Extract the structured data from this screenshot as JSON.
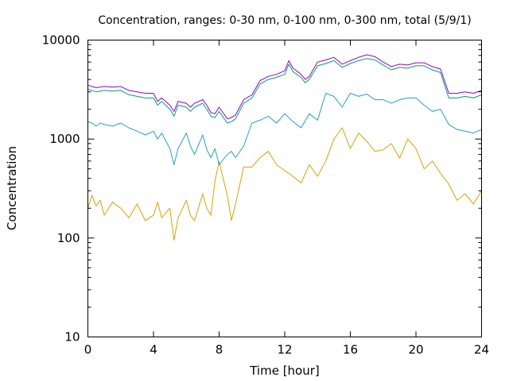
{
  "chart_data": {
    "type": "line",
    "title": "Concentration, ranges: 0-30 nm, 0-100 nm, 0-300 nm, total (5/9/1)",
    "xlabel": "Time [hour]",
    "ylabel": "Concentration",
    "xlim": [
      0,
      24
    ],
    "ylim": [
      10,
      10000
    ],
    "yscale": "log",
    "grid": false,
    "xticks": [
      0,
      4,
      8,
      12,
      16,
      20,
      24
    ],
    "yticks": [
      10,
      100,
      1000,
      10000
    ],
    "xtick_labels": [
      "0",
      "4",
      "8",
      "12",
      "16",
      "20",
      "24"
    ],
    "ytick_labels": [
      "10",
      "100",
      "1000",
      "10000"
    ],
    "series": [
      {
        "color": "#dca000",
        "x": [
          0,
          0.25,
          0.5,
          0.75,
          1,
          1.5,
          2,
          2.5,
          3,
          3.5,
          4,
          4.25,
          4.5,
          5,
          5.25,
          5.5,
          6,
          6.25,
          6.5,
          7,
          7.25,
          7.5,
          7.75,
          8,
          8.5,
          8.75,
          9,
          9.5,
          10,
          10.5,
          11,
          11.5,
          12,
          12.5,
          13,
          13.5,
          14,
          14.5,
          15,
          15.5,
          16,
          16.5,
          17,
          17.5,
          18,
          18.5,
          19,
          19.5,
          20,
          20.5,
          21,
          21.5,
          22,
          22.5,
          23,
          23.5,
          24
        ],
        "y": [
          200,
          270,
          210,
          240,
          170,
          230,
          200,
          160,
          220,
          150,
          170,
          230,
          160,
          200,
          95,
          160,
          240,
          170,
          150,
          280,
          200,
          170,
          380,
          590,
          270,
          150,
          220,
          520,
          520,
          650,
          750,
          550,
          480,
          420,
          360,
          550,
          420,
          600,
          1000,
          1300,
          800,
          1150,
          950,
          750,
          780,
          900,
          640,
          1000,
          800,
          500,
          600,
          450,
          350,
          240,
          280,
          220,
          300
        ]
      },
      {
        "color": "#20a0c8",
        "x": [
          0,
          0.25,
          0.5,
          0.75,
          1,
          1.5,
          2,
          2.5,
          3,
          3.5,
          4,
          4.25,
          4.5,
          5,
          5.25,
          5.5,
          6,
          6.25,
          6.5,
          7,
          7.25,
          7.5,
          7.75,
          8,
          8.5,
          8.75,
          9,
          9.5,
          10,
          10.5,
          11,
          11.5,
          12,
          12.5,
          13,
          13.5,
          14,
          14.5,
          15,
          15.5,
          16,
          16.5,
          17,
          17.5,
          18,
          18.5,
          19,
          19.5,
          20,
          20.5,
          21,
          21.5,
          22,
          22.5,
          23,
          23.5,
          24
        ],
        "y": [
          1500,
          1450,
          1350,
          1450,
          1400,
          1350,
          1450,
          1300,
          1200,
          1100,
          1200,
          1000,
          1150,
          800,
          550,
          800,
          1150,
          850,
          700,
          1100,
          780,
          650,
          800,
          550,
          700,
          750,
          650,
          850,
          1450,
          1550,
          1700,
          1450,
          1800,
          1500,
          1300,
          1800,
          1550,
          2900,
          2700,
          2100,
          2900,
          2700,
          2850,
          2500,
          2500,
          2300,
          2500,
          2600,
          2600,
          2200,
          1900,
          2000,
          1400,
          1250,
          1200,
          1150,
          1250
        ]
      },
      {
        "color": "#009e73",
        "x": [
          0,
          0.5,
          1,
          1.5,
          2,
          2.5,
          3,
          3.5,
          4,
          4.25,
          4.5,
          5,
          5.25,
          5.5,
          6,
          6.25,
          6.5,
          7,
          7.25,
          7.5,
          7.75,
          8,
          8.5,
          8.75,
          9,
          9.5,
          10,
          10.5,
          11,
          11.5,
          12,
          12.25,
          12.5,
          13,
          13.25,
          13.5,
          14,
          14.5,
          15,
          15.5,
          16,
          16.5,
          17,
          17.5,
          18,
          18.5,
          19,
          19.5,
          20,
          20.5,
          21,
          21.5,
          22,
          22.5,
          23,
          23.5,
          24
        ],
        "y": [
          3200,
          3000,
          3100,
          3050,
          3100,
          2800,
          2700,
          2600,
          2600,
          2200,
          2400,
          2000,
          1700,
          2200,
          2100,
          1900,
          2100,
          2300,
          2000,
          1700,
          1650,
          1900,
          1450,
          1500,
          1600,
          2300,
          2600,
          3600,
          4000,
          4200,
          4500,
          5700,
          4800,
          4200,
          3700,
          4000,
          5500,
          5800,
          6200,
          5300,
          5800,
          6200,
          6500,
          6300,
          5600,
          5000,
          5300,
          5200,
          5500,
          5500,
          5000,
          4700,
          2600,
          2600,
          2700,
          2600,
          2800
        ]
      },
      {
        "color": "#9400d3",
        "x": [
          0,
          0.5,
          1,
          1.5,
          2,
          2.5,
          3,
          3.5,
          4,
          4.25,
          4.5,
          5,
          5.25,
          5.5,
          6,
          6.25,
          6.5,
          7,
          7.25,
          7.5,
          7.75,
          8,
          8.5,
          8.75,
          9,
          9.5,
          10,
          10.5,
          11,
          11.5,
          12,
          12.25,
          12.5,
          13,
          13.25,
          13.5,
          14,
          14.5,
          15,
          15.5,
          16,
          16.5,
          17,
          17.5,
          18,
          18.5,
          19,
          19.5,
          20,
          20.5,
          21,
          21.5,
          22,
          22.5,
          23,
          23.5,
          24
        ],
        "y": [
          3500,
          3300,
          3400,
          3350,
          3400,
          3100,
          3000,
          2900,
          2900,
          2400,
          2600,
          2200,
          1900,
          2400,
          2300,
          2100,
          2300,
          2500,
          2200,
          1850,
          1800,
          2100,
          1600,
          1650,
          1750,
          2500,
          2800,
          3900,
          4300,
          4500,
          4900,
          6200,
          5200,
          4500,
          4000,
          4300,
          6000,
          6300,
          6700,
          5700,
          6200,
          6700,
          7100,
          6800,
          6000,
          5400,
          5700,
          5600,
          5900,
          5900,
          5400,
          5100,
          2900,
          2900,
          3000,
          2900,
          3100
        ]
      }
    ]
  }
}
